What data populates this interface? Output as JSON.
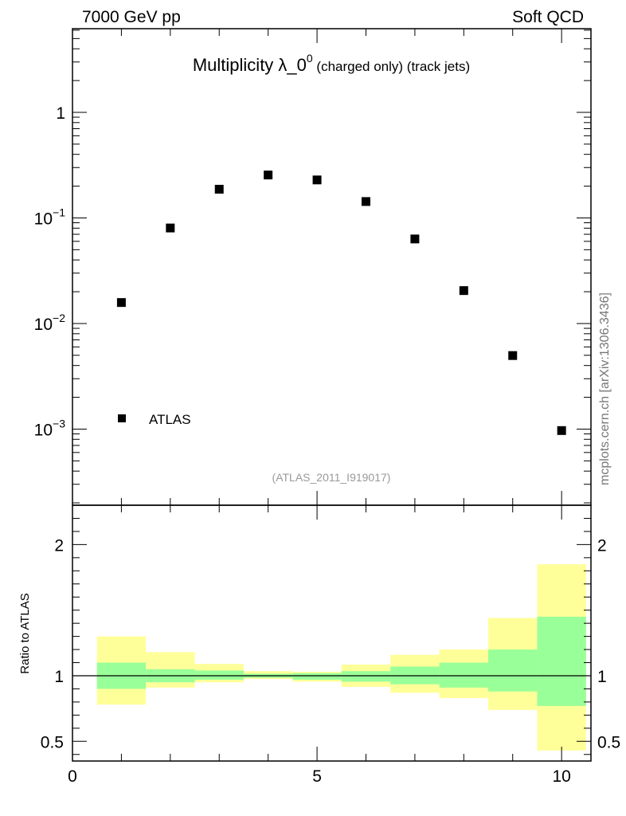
{
  "header": {
    "left": "7000 GeV pp",
    "right": "Soft QCD"
  },
  "side_note": "mcplots.cern.ch [arXiv:1306.3436]",
  "reference_note": "(ATLAS_2011_I919017)",
  "chart_data": [
    {
      "type": "scatter",
      "title": "Multiplicity λ_0⁰ (charged only) (track jets)",
      "title_main": "Multiplicity λ_0",
      "title_sup": "0",
      "title_tail": " (charged only) (track jets)",
      "xlim": [
        0,
        10.6
      ],
      "ylim": [
        0.00019,
        6.2
      ],
      "yscale": "log",
      "y_ticks": [
        {
          "value": 1,
          "label": "1",
          "exp": ""
        },
        {
          "value": 0.1,
          "label": "10",
          "exp": "−1"
        },
        {
          "value": 0.01,
          "label": "10",
          "exp": "−2"
        },
        {
          "value": 0.001,
          "label": "10",
          "exp": "−3"
        }
      ],
      "series": [
        {
          "name": "ATLAS",
          "marker": "square",
          "color": "#000000",
          "x": [
            1,
            2,
            3,
            4,
            5,
            6,
            7,
            8,
            9,
            10
          ],
          "y": [
            0.0158,
            0.0803,
            0.187,
            0.255,
            0.229,
            0.143,
            0.0632,
            0.0205,
            0.00497,
            0.000968
          ]
        }
      ],
      "legend": {
        "position": "bottom-left",
        "entries": [
          "ATLAS"
        ]
      }
    },
    {
      "type": "area",
      "ylabel": "Ratio to ATLAS",
      "xlim": [
        0,
        10.6
      ],
      "ylim": [
        0.35,
        2.3
      ],
      "x_ticks": [
        0,
        5,
        10
      ],
      "y_ticks": [
        0.5,
        1,
        2
      ],
      "reference_line": 1.0,
      "bins": [
        {
          "x_low": 0.5,
          "x_high": 1.5,
          "stat_low": 0.9,
          "stat_high": 1.1,
          "total_low": 0.78,
          "total_high": 1.3
        },
        {
          "x_low": 1.5,
          "x_high": 2.5,
          "stat_low": 0.95,
          "stat_high": 1.05,
          "total_low": 0.91,
          "total_high": 1.18
        },
        {
          "x_low": 2.5,
          "x_high": 3.5,
          "stat_low": 0.97,
          "stat_high": 1.04,
          "total_low": 0.95,
          "total_high": 1.09
        },
        {
          "x_low": 3.5,
          "x_high": 4.5,
          "stat_low": 0.985,
          "stat_high": 1.015,
          "total_low": 0.975,
          "total_high": 1.035
        },
        {
          "x_low": 4.5,
          "x_high": 5.5,
          "stat_low": 0.97,
          "stat_high": 1.02,
          "total_low": 0.955,
          "total_high": 1.03
        },
        {
          "x_low": 5.5,
          "x_high": 6.5,
          "stat_low": 0.955,
          "stat_high": 1.035,
          "total_low": 0.915,
          "total_high": 1.085
        },
        {
          "x_low": 6.5,
          "x_high": 7.5,
          "stat_low": 0.935,
          "stat_high": 1.07,
          "total_low": 0.87,
          "total_high": 1.16
        },
        {
          "x_low": 7.5,
          "x_high": 8.5,
          "stat_low": 0.91,
          "stat_high": 1.1,
          "total_low": 0.83,
          "total_high": 1.2
        },
        {
          "x_low": 8.5,
          "x_high": 9.5,
          "stat_low": 0.88,
          "stat_high": 1.2,
          "total_low": 0.74,
          "total_high": 1.44
        },
        {
          "x_low": 9.5,
          "x_high": 10.5,
          "stat_low": 0.77,
          "stat_high": 1.45,
          "total_low": 0.43,
          "total_high": 1.85
        }
      ],
      "colors": {
        "stat": "#99ff99",
        "total": "#ffff99",
        "line": "#000000"
      }
    }
  ]
}
